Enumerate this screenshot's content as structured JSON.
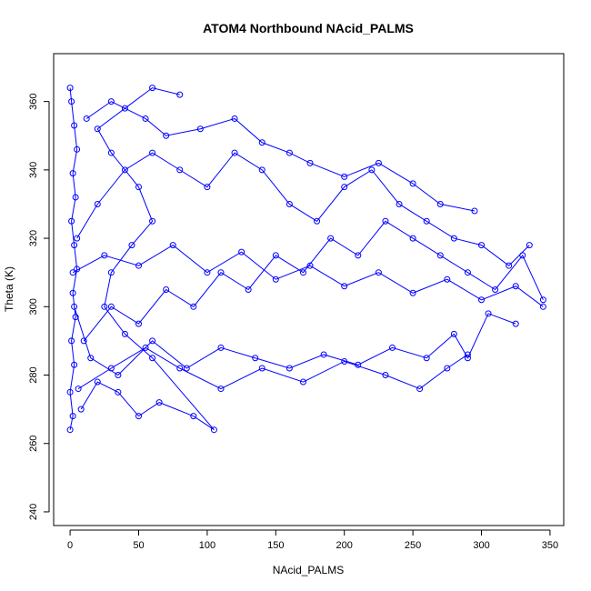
{
  "chart_data": {
    "type": "line",
    "title": "ATOM4 Northbound NAcid_PALMS",
    "xlabel": "NAcid_PALMS",
    "ylabel": "Theta (K)",
    "xlim": [
      -12,
      360
    ],
    "ylim": [
      236,
      374
    ],
    "x_ticks": [
      0,
      50,
      100,
      150,
      200,
      250,
      300,
      350
    ],
    "y_ticks": [
      240,
      260,
      280,
      300,
      320,
      340,
      360
    ],
    "grid": false,
    "legend": "none",
    "marker": "open-circle",
    "series_color": "#0000ff",
    "series": [
      {
        "points": [
          [
            0,
            264
          ],
          [
            2,
            268
          ],
          [
            0,
            275
          ],
          [
            3,
            283
          ],
          [
            1,
            290
          ],
          [
            4,
            297
          ],
          [
            2,
            304
          ],
          [
            5,
            311
          ],
          [
            3,
            318
          ],
          [
            1,
            325
          ],
          [
            4,
            332
          ],
          [
            2,
            339
          ],
          [
            5,
            346
          ],
          [
            3,
            353
          ],
          [
            1,
            360
          ],
          [
            0,
            364
          ]
        ]
      },
      {
        "points": [
          [
            8,
            270
          ],
          [
            20,
            278
          ],
          [
            35,
            275
          ],
          [
            50,
            268
          ],
          [
            65,
            272
          ],
          [
            90,
            268
          ],
          [
            105,
            264
          ],
          [
            60,
            285
          ],
          [
            40,
            292
          ],
          [
            25,
            300
          ],
          [
            30,
            310
          ],
          [
            45,
            318
          ],
          [
            60,
            325
          ],
          [
            50,
            335
          ],
          [
            30,
            345
          ],
          [
            20,
            352
          ],
          [
            40,
            358
          ],
          [
            60,
            364
          ],
          [
            80,
            362
          ]
        ]
      },
      {
        "points": [
          [
            10,
            290
          ],
          [
            30,
            300
          ],
          [
            50,
            295
          ],
          [
            70,
            305
          ],
          [
            90,
            300
          ],
          [
            110,
            310
          ],
          [
            130,
            305
          ],
          [
            150,
            315
          ],
          [
            170,
            310
          ],
          [
            190,
            320
          ],
          [
            210,
            315
          ],
          [
            230,
            325
          ],
          [
            250,
            320
          ],
          [
            270,
            315
          ],
          [
            290,
            310
          ],
          [
            310,
            305
          ],
          [
            330,
            315
          ],
          [
            345,
            302
          ]
        ]
      },
      {
        "points": [
          [
            5,
            320
          ],
          [
            20,
            330
          ],
          [
            40,
            340
          ],
          [
            60,
            345
          ],
          [
            80,
            340
          ],
          [
            100,
            335
          ],
          [
            120,
            345
          ],
          [
            140,
            340
          ],
          [
            160,
            330
          ],
          [
            180,
            325
          ],
          [
            200,
            335
          ],
          [
            220,
            340
          ],
          [
            240,
            330
          ],
          [
            260,
            325
          ],
          [
            280,
            320
          ],
          [
            300,
            318
          ],
          [
            320,
            312
          ],
          [
            335,
            318
          ]
        ]
      },
      {
        "points": [
          [
            3,
            300
          ],
          [
            15,
            285
          ],
          [
            35,
            280
          ],
          [
            60,
            290
          ],
          [
            85,
            282
          ],
          [
            110,
            288
          ],
          [
            135,
            285
          ],
          [
            160,
            282
          ],
          [
            185,
            286
          ],
          [
            210,
            283
          ],
          [
            235,
            288
          ],
          [
            260,
            285
          ],
          [
            280,
            292
          ],
          [
            290,
            285
          ],
          [
            305,
            298
          ],
          [
            325,
            295
          ]
        ]
      },
      {
        "points": [
          [
            12,
            355
          ],
          [
            30,
            360
          ],
          [
            55,
            355
          ],
          [
            70,
            350
          ],
          [
            95,
            352
          ],
          [
            120,
            355
          ],
          [
            140,
            348
          ],
          [
            160,
            345
          ],
          [
            175,
            342
          ],
          [
            200,
            338
          ],
          [
            225,
            342
          ],
          [
            250,
            336
          ],
          [
            270,
            330
          ],
          [
            295,
            328
          ]
        ]
      },
      {
        "points": [
          [
            2,
            310
          ],
          [
            25,
            315
          ],
          [
            50,
            312
          ],
          [
            75,
            318
          ],
          [
            100,
            310
          ],
          [
            125,
            316
          ],
          [
            150,
            308
          ],
          [
            175,
            312
          ],
          [
            200,
            306
          ],
          [
            225,
            310
          ],
          [
            250,
            304
          ],
          [
            275,
            308
          ],
          [
            300,
            302
          ],
          [
            325,
            306
          ],
          [
            345,
            300
          ]
        ]
      },
      {
        "points": [
          [
            6,
            276
          ],
          [
            30,
            282
          ],
          [
            55,
            288
          ],
          [
            80,
            282
          ],
          [
            110,
            276
          ],
          [
            140,
            282
          ],
          [
            170,
            278
          ],
          [
            200,
            284
          ],
          [
            230,
            280
          ],
          [
            255,
            276
          ],
          [
            275,
            282
          ],
          [
            290,
            286
          ]
        ]
      }
    ]
  }
}
